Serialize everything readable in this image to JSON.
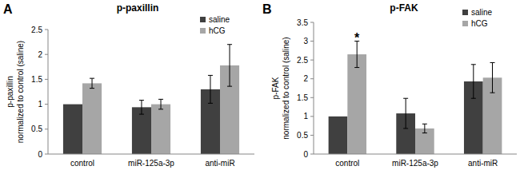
{
  "chart_data": [
    {
      "type": "bar",
      "panel": "A",
      "title": "p-paxillin",
      "y_label": [
        "p-paxillin",
        "normalized to control (saline)"
      ],
      "categories": [
        "control",
        "miR-125a-3p",
        "anti-miR"
      ],
      "series": [
        {
          "name": "saline",
          "color": "#404040",
          "values": [
            1.0,
            0.94,
            1.3
          ],
          "errors": [
            0,
            0.14,
            0.28
          ]
        },
        {
          "name": "hCG",
          "color": "#a6a6a6",
          "values": [
            1.42,
            1.0,
            1.78
          ],
          "errors": [
            0.1,
            0.1,
            0.42
          ]
        }
      ],
      "ylim": [
        0,
        2.5
      ],
      "yticks": [
        0,
        0.5,
        1,
        1.5,
        2,
        2.5
      ],
      "grid": false,
      "legend": "upper right"
    },
    {
      "type": "bar",
      "panel": "B",
      "title": "p-FAK",
      "y_label": [
        "p-FAK",
        "normalized to control (saline)"
      ],
      "categories": [
        "control",
        "miR-125a-3p",
        "anti-miR"
      ],
      "series": [
        {
          "name": "saline",
          "color": "#404040",
          "values": [
            1.0,
            1.08,
            1.93
          ],
          "errors": [
            0,
            0.4,
            0.45
          ]
        },
        {
          "name": "hCG",
          "color": "#a6a6a6",
          "values": [
            2.65,
            0.68,
            2.03
          ],
          "errors": [
            0.35,
            0.12,
            0.4
          ]
        }
      ],
      "annotations": [
        {
          "text": "*",
          "series": 1,
          "category": 0
        }
      ],
      "ylim": [
        0,
        3.5
      ],
      "yticks": [
        0,
        0.5,
        1,
        1.5,
        2,
        2.5,
        3,
        3.5
      ],
      "grid": false,
      "legend": "upper right"
    }
  ]
}
